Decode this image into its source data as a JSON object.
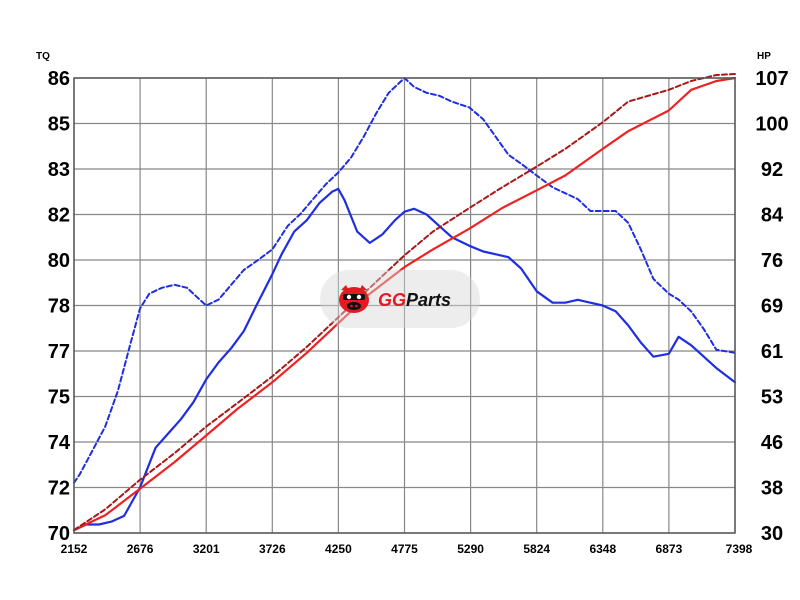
{
  "chart_data": {
    "type": "line",
    "x_label": "",
    "left_axis": {
      "unit": "TQ",
      "ticks": [
        "70",
        "72",
        "74",
        "75",
        "77",
        "78",
        "80",
        "82",
        "83",
        "85",
        "86"
      ],
      "range": [
        70,
        86
      ]
    },
    "right_axis": {
      "unit": "HP",
      "ticks": [
        "30",
        "38",
        "46",
        "53",
        "61",
        "69",
        "76",
        "84",
        "92",
        "100",
        "107"
      ],
      "range": [
        30,
        107
      ]
    },
    "x_ticks": [
      "2152",
      "2676",
      "3201",
      "3726",
      "4250",
      "4775",
      "5290",
      "5824",
      "6348",
      "6873",
      "7398"
    ],
    "x_range": [
      2152,
      7398
    ],
    "grid": true,
    "series": [
      {
        "color": "#1f2ee0",
        "style": "solid",
        "axis": "left",
        "x": [
          2152,
          2250,
          2350,
          2450,
          2550,
          2676,
          2800,
          2900,
          3000,
          3100,
          3201,
          3300,
          3400,
          3500,
          3600,
          3726,
          3800,
          3900,
          4000,
          4100,
          4200,
          4250,
          4300,
          4400,
          4500,
          4600,
          4700,
          4775,
          4850,
          4950,
          5050,
          5150,
          5290,
          5400,
          5500,
          5600,
          5700,
          5824,
          5950,
          6050,
          6150,
          6250,
          6348,
          6450,
          6550,
          6650,
          6750,
          6873,
          6950,
          7050,
          7150,
          7250,
          7398
        ],
        "values": [
          70.1,
          70.3,
          70.3,
          70.4,
          70.6,
          71.6,
          73.0,
          73.5,
          74.0,
          74.6,
          75.4,
          76.0,
          76.5,
          77.1,
          78.0,
          79.1,
          79.8,
          80.6,
          81.0,
          81.6,
          82.0,
          82.1,
          81.7,
          80.6,
          80.2,
          80.5,
          81.0,
          81.3,
          81.4,
          81.2,
          80.8,
          80.4,
          80.1,
          79.9,
          79.8,
          79.7,
          79.3,
          78.5,
          78.1,
          78.1,
          78.2,
          78.1,
          78.0,
          77.8,
          77.3,
          76.7,
          76.2,
          76.3,
          76.9,
          76.6,
          76.2,
          75.8,
          75.3
        ]
      },
      {
        "color": "#1f2ee0",
        "style": "dashed",
        "axis": "right",
        "x": [
          2152,
          2200,
          2300,
          2400,
          2500,
          2600,
          2676,
          2750,
          2850,
          2950,
          3050,
          3150,
          3201,
          3300,
          3400,
          3500,
          3600,
          3726,
          3850,
          3950,
          4050,
          4150,
          4250,
          4350,
          4450,
          4550,
          4650,
          4775,
          4850,
          4950,
          5050,
          5150,
          5290,
          5400,
          5500,
          5600,
          5700,
          5824,
          5950,
          6050,
          6150,
          6250,
          6348,
          6450,
          6550,
          6650,
          6750,
          6873,
          6950,
          7050,
          7150,
          7250,
          7398
        ],
        "values": [
          38.5,
          40,
          44,
          48,
          54,
          62,
          68,
          70.5,
          71.5,
          72,
          71.5,
          69.5,
          68.5,
          69.5,
          72,
          74.5,
          76,
          78,
          82,
          84,
          86.5,
          89,
          91,
          93.5,
          97,
          101,
          104.5,
          107,
          105.5,
          104.5,
          104,
          103,
          102,
          100,
          97,
          94,
          92.5,
          90.5,
          88.5,
          87.5,
          86.5,
          84.5,
          84.5,
          84.5,
          82.5,
          78,
          73,
          70.5,
          69.5,
          67.5,
          64.5,
          61,
          60.5
        ]
      },
      {
        "color": "#ee2222",
        "style": "solid",
        "axis": "right",
        "x": [
          2152,
          2400,
          2676,
          2950,
          3201,
          3450,
          3726,
          4000,
          4250,
          4500,
          4775,
          5000,
          5290,
          5550,
          5824,
          6050,
          6348,
          6550,
          6873,
          7050,
          7250,
          7398
        ],
        "values": [
          30.5,
          33,
          37.5,
          42,
          46.5,
          51,
          55.5,
          60.5,
          65.5,
          70.5,
          75,
          78,
          81.5,
          85,
          88,
          90.5,
          95,
          98,
          101.5,
          105,
          106.5,
          107
        ]
      },
      {
        "color": "#a81818",
        "style": "dashed",
        "axis": "right",
        "x": [
          2152,
          2400,
          2676,
          2950,
          3201,
          3450,
          3726,
          4000,
          4250,
          4500,
          4775,
          5000,
          5290,
          5550,
          5824,
          6050,
          6348,
          6550,
          6873,
          7050,
          7250,
          7398
        ],
        "values": [
          30.5,
          34,
          39,
          43.5,
          48,
          52,
          56.5,
          61.5,
          66.5,
          71.5,
          77,
          81,
          85,
          88.5,
          92,
          95,
          99.5,
          103,
          105,
          106.5,
          107.5,
          108
        ]
      }
    ]
  },
  "watermark": {
    "brand": "GGParts",
    "brand_prefix": "GG",
    "brand_suffix": "Parts",
    "accent_color": "#e21b23",
    "icon": "mascot-icon"
  }
}
